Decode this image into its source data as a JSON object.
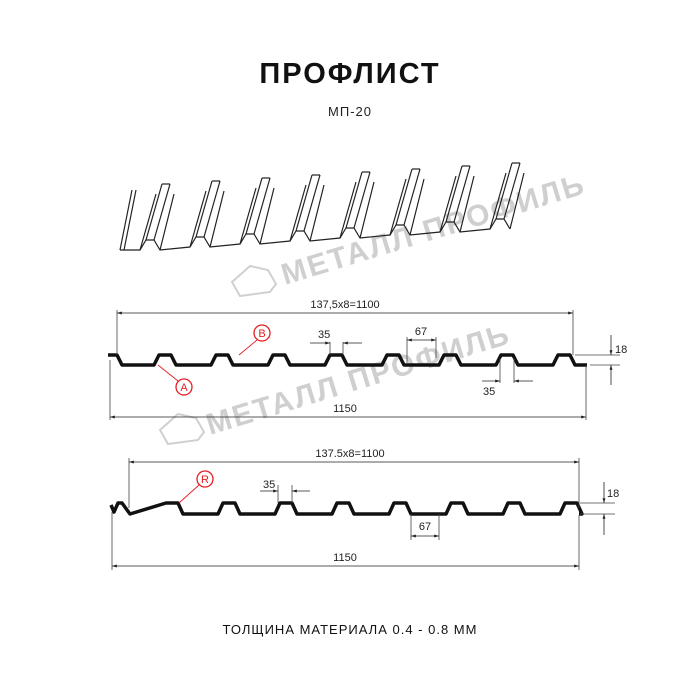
{
  "header": {
    "title": "ПРОФЛИСТ",
    "subtitle": "МП-20"
  },
  "watermark": {
    "text": "МЕТАЛЛ ПРОФИЛЬ"
  },
  "profile_a": {
    "pitch_label": "137,5x8=1100",
    "width_label": "1150",
    "height_label": "18",
    "top_width_label": "35",
    "bottom_width_label": "67",
    "bottom_rib_label": "35",
    "side_labels": [
      "B",
      "A"
    ]
  },
  "profile_r": {
    "pitch_label": "137.5x8=1100",
    "width_label": "1150",
    "height_label": "18",
    "top_width_label": "35",
    "bottom_width_label": "67",
    "side_label": "R"
  },
  "footer": {
    "thickness": "ТОЛЩИНА МАТЕРИАЛА 0.4 - 0.8 ММ"
  },
  "colors": {
    "line": "#111111",
    "callout": "#e31e24",
    "watermark": "#cfcfcf"
  }
}
